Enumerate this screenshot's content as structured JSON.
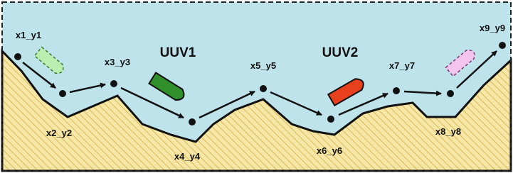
{
  "nodes": [
    {
      "label": "x1_y1"
    },
    {
      "label": "x2_y2"
    },
    {
      "label": "x3_y3"
    },
    {
      "label": "x4_y4"
    },
    {
      "label": "x5_y5"
    },
    {
      "label": "x6_y6"
    },
    {
      "label": "x7_y7"
    },
    {
      "label": "x8_y8"
    },
    {
      "label": "x9_y9"
    }
  ],
  "vehicles": [
    {
      "label": "UUV1"
    },
    {
      "label": "UUV2"
    }
  ]
}
